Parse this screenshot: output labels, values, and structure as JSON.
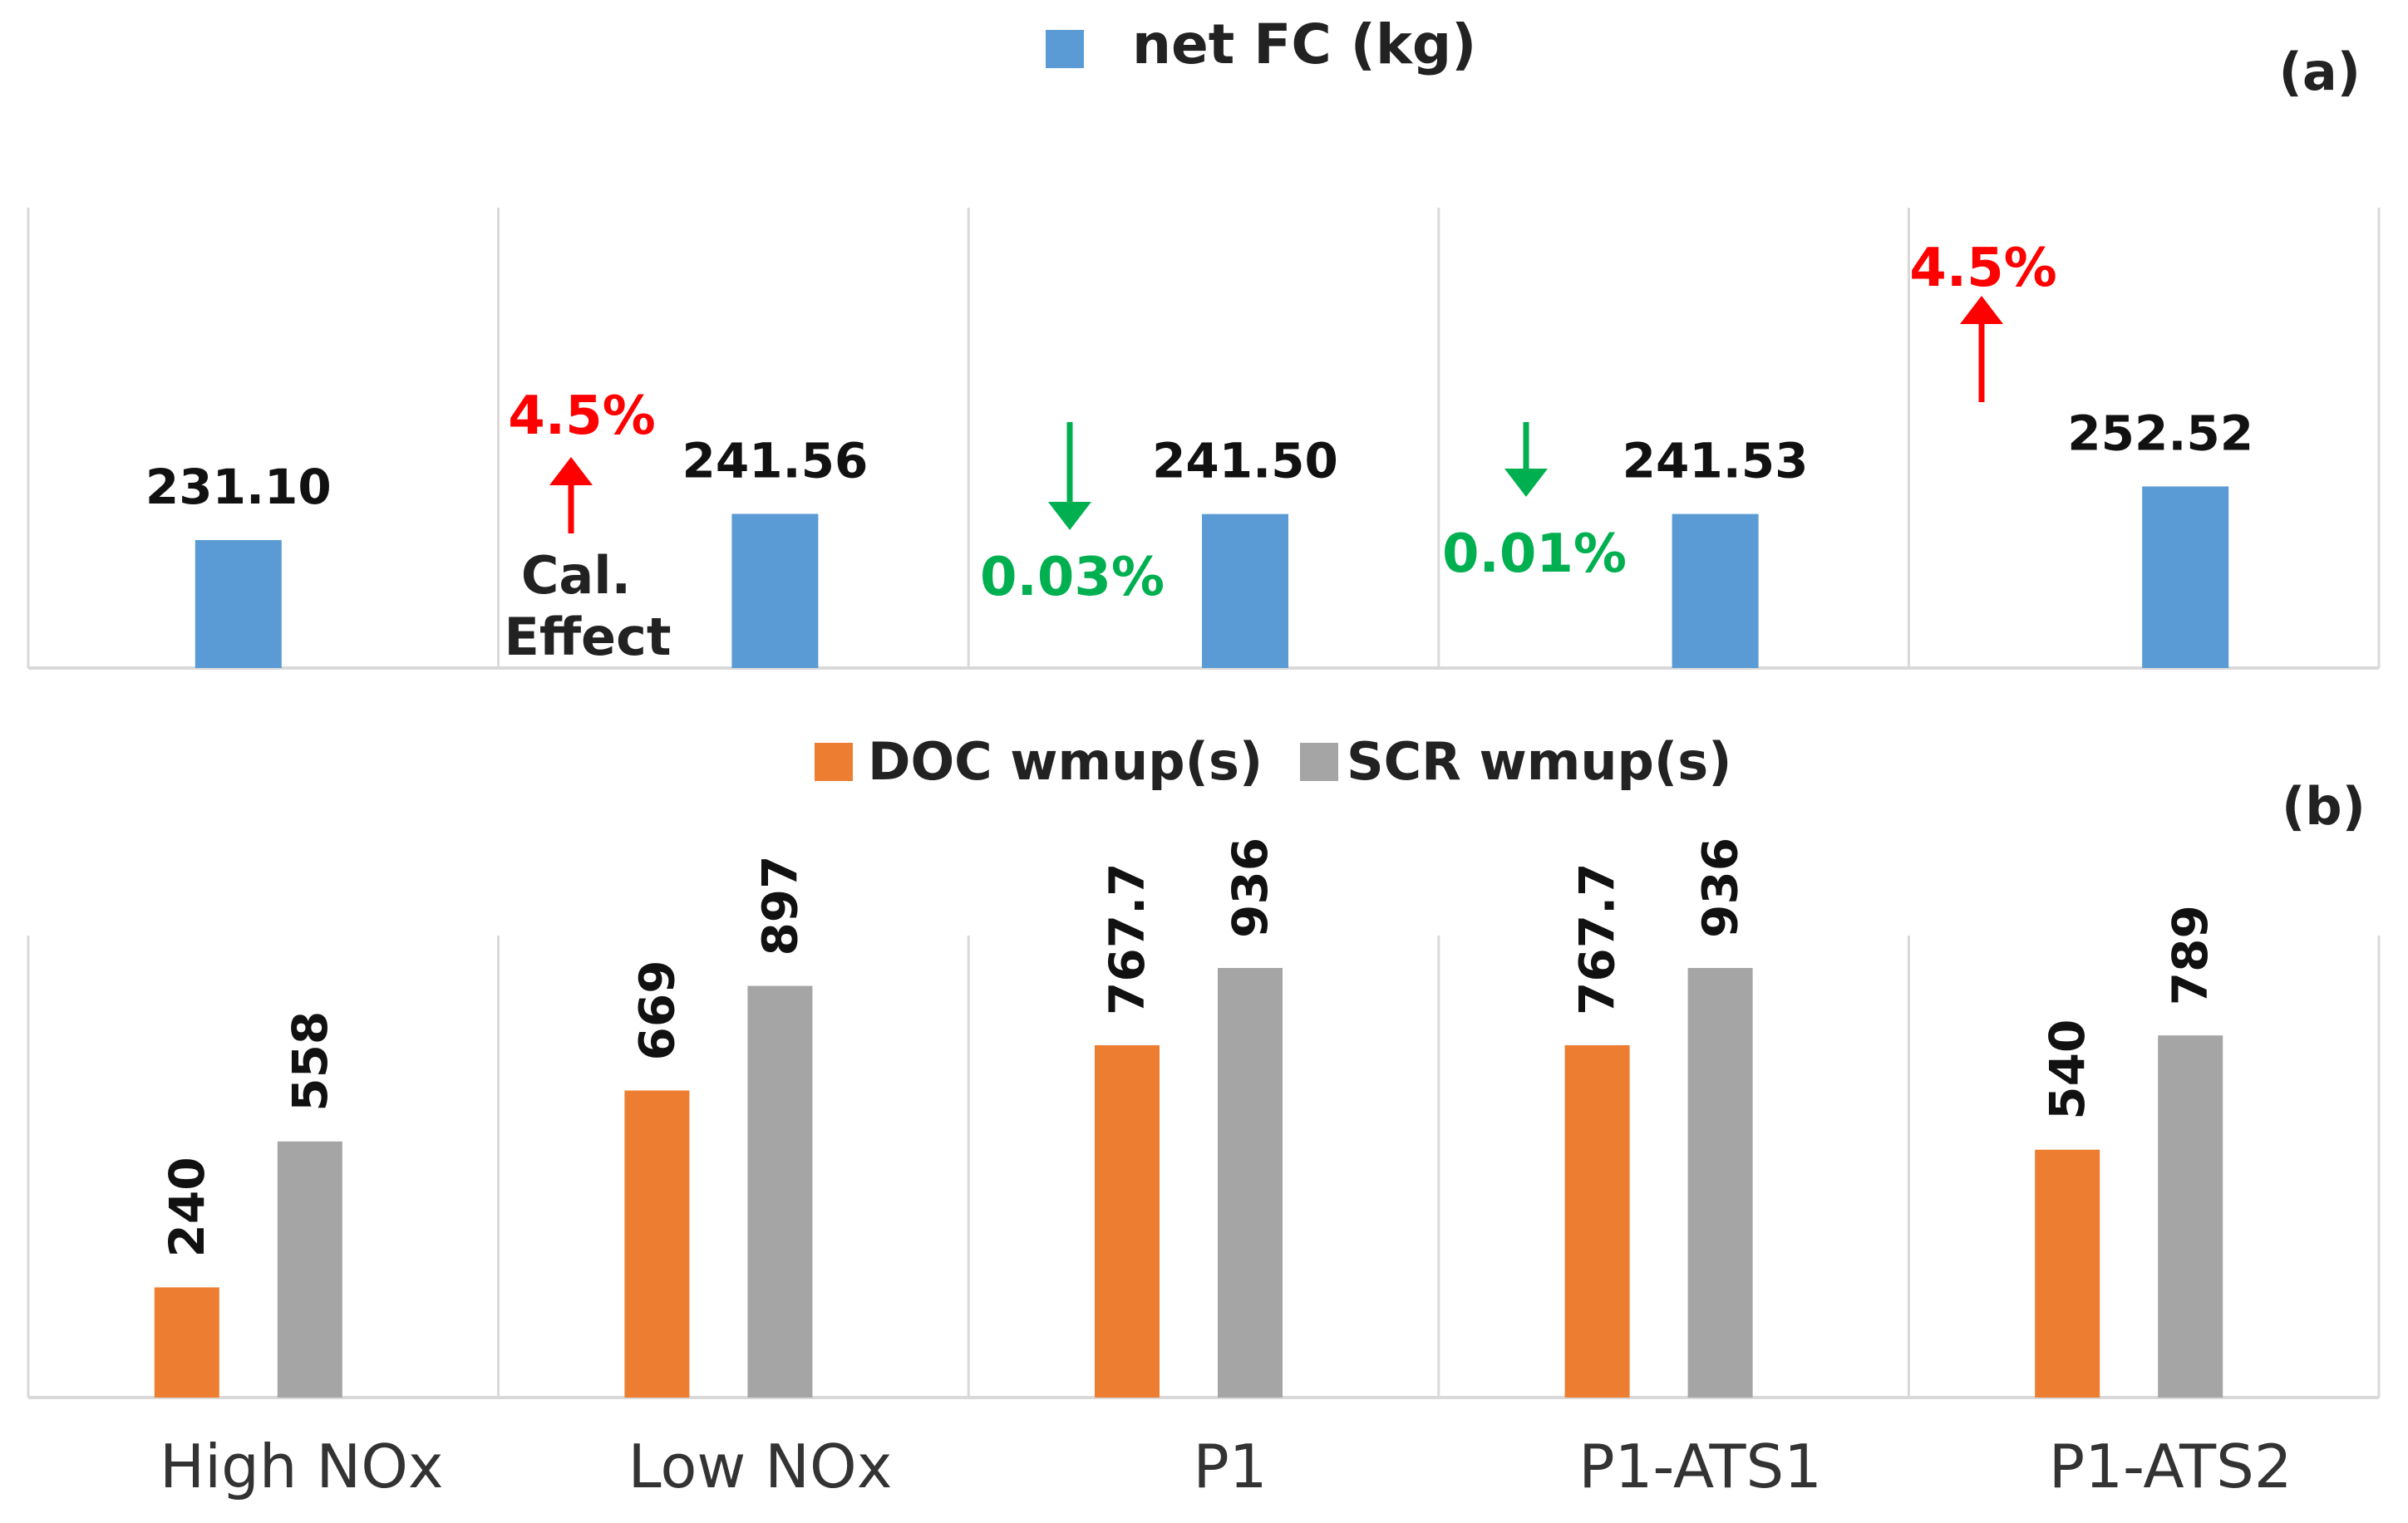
{
  "chart_data": [
    {
      "type": "bar",
      "panel": "(a)",
      "categories": [
        "High NOx",
        "Low NOx",
        "P1",
        "P1-ATS1",
        "P1-ATS2"
      ],
      "series": [
        {
          "name": "net FC (kg)",
          "values": [
            231.1,
            241.56,
            241.5,
            241.53,
            252.52
          ],
          "color": "#5b9bd5"
        }
      ],
      "value_labels": [
        "231.10",
        "241.56",
        "241.50",
        "241.53",
        "252.52"
      ],
      "ylim": [
        180,
        260
      ],
      "grid": false,
      "legend_position": "top-center",
      "annotations": [
        {
          "category": "Low NOx",
          "text": "4.5%",
          "direction": "up",
          "color": "#ff0000",
          "note": [
            "Cal.",
            "Effect"
          ]
        },
        {
          "category": "P1",
          "text": "0.03%",
          "direction": "down",
          "color": "#00b050"
        },
        {
          "category": "P1-ATS1",
          "text": "0.01%",
          "direction": "down",
          "color": "#00b050"
        },
        {
          "category": "P1-ATS2",
          "text": "4.5%",
          "direction": "up",
          "color": "#ff0000"
        }
      ]
    },
    {
      "type": "bar",
      "panel": "(b)",
      "categories": [
        "High NOx",
        "Low NOx",
        "P1",
        "P1-ATS1",
        "P1-ATS2"
      ],
      "series": [
        {
          "name": "DOC wmup(s)",
          "values": [
            240,
            669,
            767.7,
            767.7,
            540
          ],
          "labels": [
            "240",
            "669",
            "767.7",
            "767.7",
            "540"
          ],
          "color": "#ed7d31"
        },
        {
          "name": "SCR wmup(s)",
          "values": [
            558,
            897,
            936,
            936,
            789
          ],
          "labels": [
            "558",
            "897",
            "936",
            "936",
            "789"
          ],
          "color": "#a5a5a5"
        }
      ],
      "ylim": [
        0,
        1030
      ],
      "grid": false,
      "legend_position": "top-center"
    }
  ]
}
